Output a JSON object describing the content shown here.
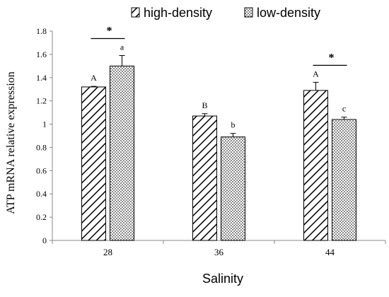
{
  "chart_data": {
    "type": "bar",
    "categories": [
      "28",
      "36",
      "44"
    ],
    "series": [
      {
        "name": "high-density",
        "values": [
          1.32,
          1.07,
          1.29
        ],
        "errors": [
          0.005,
          0.02,
          0.07
        ],
        "letters": [
          "A",
          "B",
          "A"
        ]
      },
      {
        "name": "low-density",
        "values": [
          1.5,
          0.89,
          1.04
        ],
        "errors": [
          0.09,
          0.03,
          0.02
        ],
        "letters": [
          "a",
          "b",
          "c"
        ]
      }
    ],
    "significance": [
      {
        "category": "28",
        "label": "*"
      },
      {
        "category": "44",
        "label": "*"
      }
    ],
    "xlabel": "Salinity",
    "ylabel": "ATP mRNA relative expression",
    "ylim": [
      0,
      1.8
    ],
    "yticks": [
      0,
      0.2,
      0.4,
      0.6,
      0.8,
      1,
      1.2,
      1.4,
      1.6,
      1.8
    ],
    "ytick_labels": [
      "0",
      "0.2",
      "0.4",
      "0.6",
      "0.8",
      "1",
      "1.2",
      "1.4",
      "1.6",
      "1.8"
    ],
    "grid": false,
    "legend_position": "top"
  }
}
